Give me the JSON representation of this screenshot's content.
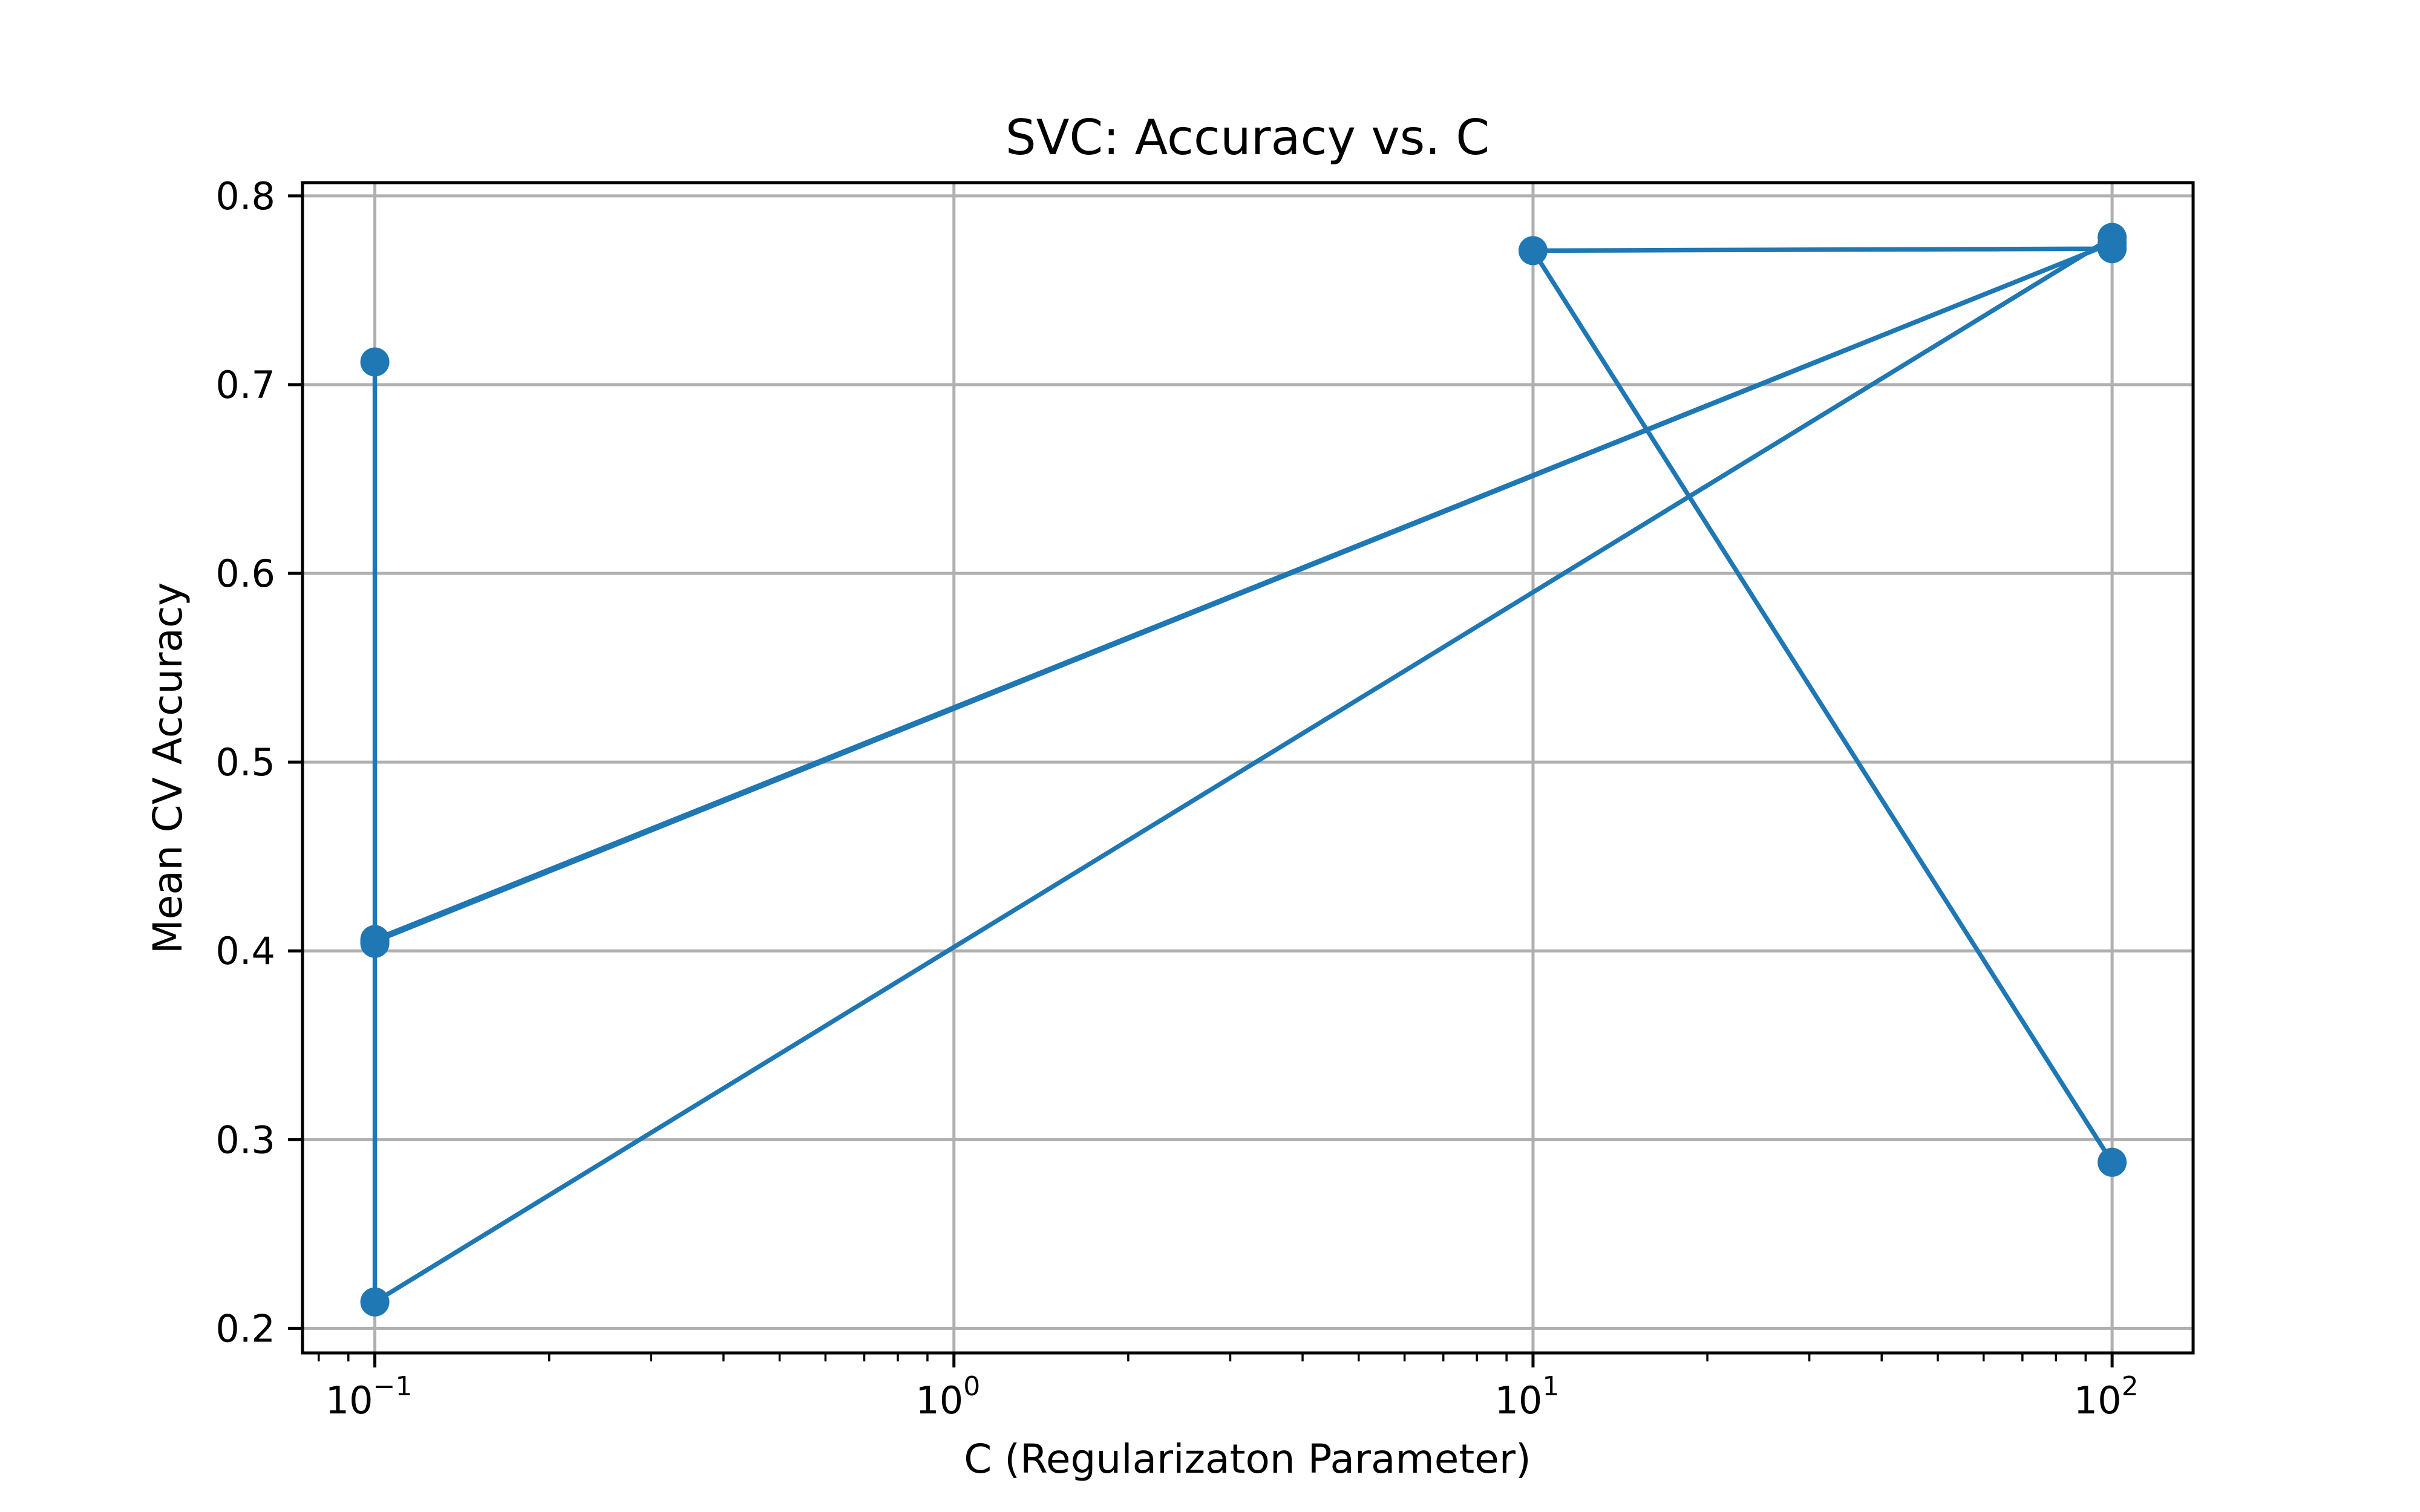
{
  "chart_data": {
    "type": "line",
    "title": "SVC: Accuracy vs. C",
    "xlabel": "C (Regularizaton Parameter)",
    "ylabel": "Mean CV Accuracy",
    "xscale": "log",
    "xlim": [
      0.075,
      138
    ],
    "ylim": [
      0.187,
      0.807
    ],
    "grid": true,
    "marker": "circle",
    "x_ticks": [
      {
        "value": 0.1,
        "base": "10",
        "exp": "−1"
      },
      {
        "value": 1,
        "base": "10",
        "exp": "0"
      },
      {
        "value": 10,
        "base": "10",
        "exp": "1"
      },
      {
        "value": 100,
        "base": "10",
        "exp": "2"
      }
    ],
    "y_ticks": [
      {
        "value": 0.2,
        "label": "0.2"
      },
      {
        "value": 0.3,
        "label": "0.3"
      },
      {
        "value": 0.4,
        "label": "0.4"
      },
      {
        "value": 0.5,
        "label": "0.5"
      },
      {
        "value": 0.6,
        "label": "0.6"
      },
      {
        "value": 0.7,
        "label": "0.7"
      },
      {
        "value": 0.8,
        "label": "0.8"
      }
    ],
    "series": [
      {
        "color": "#1f77b4",
        "x": [
          0.1,
          0.1,
          0.1,
          100,
          0.1,
          0.1,
          100,
          100,
          10,
          100
        ],
        "y": [
          0.712,
          0.404,
          0.406,
          0.775,
          0.405,
          0.214,
          0.778,
          0.772,
          0.771,
          0.288
        ]
      }
    ]
  }
}
